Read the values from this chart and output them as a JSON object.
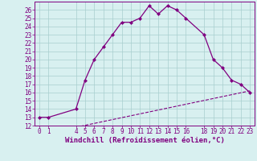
{
  "xlabel": "Windchill (Refroidissement éolien,°C)",
  "line1_x": [
    0,
    1,
    4,
    5,
    6,
    7,
    8,
    9,
    10,
    11,
    12,
    13,
    14,
    15,
    16,
    18,
    19,
    20,
    21,
    22,
    23
  ],
  "line1_y": [
    13,
    13,
    14,
    17.5,
    20,
    21.5,
    23,
    24.5,
    24.5,
    25,
    26.5,
    25.5,
    26.5,
    26,
    25,
    23,
    20,
    19,
    17.5,
    17,
    16
  ],
  "line2_x": [
    4,
    23
  ],
  "line2_y": [
    11.8,
    16.2
  ],
  "line_color": "#800080",
  "bg_color": "#d8f0f0",
  "grid_color": "#a8cece",
  "xlim": [
    -0.5,
    23.5
  ],
  "ylim": [
    12,
    27
  ],
  "xticks": [
    0,
    1,
    4,
    5,
    6,
    7,
    8,
    9,
    10,
    11,
    12,
    13,
    14,
    15,
    16,
    18,
    19,
    20,
    21,
    22,
    23
  ],
  "yticks": [
    12,
    13,
    14,
    15,
    16,
    17,
    18,
    19,
    20,
    21,
    22,
    23,
    24,
    25,
    26
  ],
  "tick_fontsize": 5.5,
  "xlabel_fontsize": 6.5
}
